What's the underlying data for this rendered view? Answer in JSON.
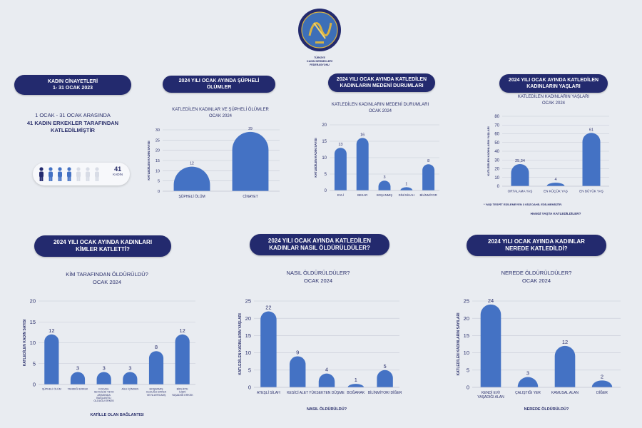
{
  "logo": {
    "caption_lines": [
      "TÜRKİYE",
      "KADIN DERNEKLERİ",
      "FEDERASYONU"
    ]
  },
  "summary": {
    "title_line1": "KADIN CİNAYETLERİ",
    "title_line2": "1- 31 OCAK 2023",
    "text_line1": "1 OCAK - 31 OCAK ARASINDA",
    "text_line2": "41 KADIN ERKEKLER TARAFINDAN",
    "text_line3": "KATLEDİLMİŞTİR",
    "count": "41",
    "count_label": "KADIN",
    "figures_dark": 1,
    "figures_mid": 3,
    "figures_light": 3
  },
  "colors": {
    "bar": "#4472c4",
    "pill": "#232a6e",
    "text": "#2a2f6b",
    "grid": "#c6cad6",
    "figure_dark": "#232a6e",
    "figure_mid": "#4472c4",
    "figure_light": "#d8dce6"
  },
  "headers": {
    "suspicious": "2024 YILI OCAK AYINDA ŞÜPHELİ ÖLÜMLER",
    "marital_l1": "2024 YILI OCAK AYINDA KATLEDİLEN",
    "marital_l2": "KADINLARIN MEDENİ DURUMLARI",
    "ages_l1": "2024 YILI OCAK AYINDA KATLEDİLEN",
    "ages_l2": "KADINLARIN YAŞLARI",
    "who_l1": "2024 YILI OCAK AYINDA KADINLARI",
    "who_l2": "KİMLER KATLETTİ?",
    "how_l1": "2024 YILI OCAK AYINDA KATLEDİLEN",
    "how_l2": "KADINLAR NASIL ÖLDÜRÜLDÜLER?",
    "where_l1": "2024 YILI OCAK AYINDA KADINLAR",
    "where_l2": "NEREDE KATLEDİLDİ?"
  },
  "ages_note": "* YAŞI TESPİT EDİLEMEYEN 3 KİŞİ DAHİL EDİLMEMİŞTİR.",
  "chart_data": [
    {
      "id": "suspicious",
      "type": "bar",
      "title_lines": [
        "KATLEDİLEN KADINLAR VE ŞÜPHELİ ÖLÜMLER",
        "OCAK 2024"
      ],
      "categories": [
        "ŞÜPHELİ ÖLÜM",
        "CİNAYET"
      ],
      "values": [
        12,
        29
      ],
      "value_labels": [
        "12",
        "29"
      ],
      "ylabel": "KATLEDİLEN KADIN SAYISI",
      "xlabel": "",
      "ylim": [
        0,
        30
      ],
      "yticks": [
        0,
        5,
        10,
        15,
        20,
        25,
        30
      ],
      "grid": true
    },
    {
      "id": "marital",
      "type": "bar",
      "title_lines": [
        "KATLEDİLEN KADINLARIN MEDENİ DURUMLARI",
        "OCAK 2024"
      ],
      "categories": [
        "EVLİ",
        "BEKAR",
        "BOŞANMIŞ",
        "DİNİ NİKAH",
        "BİLİNMİYOR"
      ],
      "values": [
        13,
        16,
        3,
        1,
        8
      ],
      "value_labels": [
        "13",
        "16",
        "3",
        "1",
        "8"
      ],
      "ylabel": "KATLEDİLEN KADIN SAYISI",
      "xlabel": "",
      "ylim": [
        0,
        20
      ],
      "yticks": [
        0,
        5,
        10,
        15,
        20
      ],
      "grid": true
    },
    {
      "id": "ages",
      "type": "bar",
      "title_lines": [
        "KATLEDİLEN KADINLARIN YAŞLARI",
        "OCAK 2024"
      ],
      "categories": [
        "ORTALAMA YAŞ",
        "EN KÜÇÜK YAŞ",
        "EN BÜYÜK YAŞ"
      ],
      "values": [
        25.34,
        4,
        61
      ],
      "value_labels": [
        "25,34",
        "4",
        "61"
      ],
      "ylabel": "KATLEDİLEN KADINLARIN YAŞLARI",
      "xlabel": "HANGİ YAŞTA KATLEDİLDİLER?",
      "ylim": [
        0,
        80
      ],
      "yticks": [
        0,
        10,
        20,
        30,
        40,
        50,
        60,
        70,
        80
      ],
      "grid": true
    },
    {
      "id": "who",
      "type": "bar",
      "title_lines": [
        "KİM TARAFINDAN ÖLDÜRÜLDÜ?",
        "OCAK 2024"
      ],
      "categories": [
        "ŞÜPHELİ ÖLÜM",
        "TANIDIĞI ERKEK",
        "KOCASI, SEVGİLİSİ VEYA ARASINDA BAĞLANTILI OLDUĞU ERKEK",
        "AİLE İÇİNDEN",
        "BOŞANMIŞ OLDUĞU ERKEK VEYA AYRILMIŞ",
        "BİRLİKTE İLİŞKİ YAŞADIĞI ERKEK"
      ],
      "values": [
        12,
        3,
        3,
        3,
        8,
        12
      ],
      "value_labels": [
        "12",
        "3",
        "3",
        "3",
        "8",
        "12"
      ],
      "ylabel": "KATLEDİLEN KADIN SAYISI",
      "xlabel": "KATİLLE OLAN BAĞLANTISI",
      "ylim": [
        0,
        20
      ],
      "yticks": [
        0,
        5,
        10,
        15,
        20
      ],
      "grid": true
    },
    {
      "id": "how",
      "type": "bar",
      "title_lines": [
        "NASIL ÖLDÜRÜLDÜLER?",
        "OCAK 2024"
      ],
      "categories": [
        "ATEŞLİ SİLAH",
        "KESİCİ ALET",
        "YÜKSEKTEN DÜŞME",
        "BOĞARAK",
        "BİLİNMİYOR/ DİĞER"
      ],
      "values": [
        22,
        9,
        4,
        1,
        5
      ],
      "value_labels": [
        "22",
        "9",
        "4",
        "1",
        "5"
      ],
      "ylabel": "KATLEDİLEN KADINLARIN YAŞLARI",
      "xlabel": "NASIL ÖLDÜRÜLDÜ?",
      "ylim": [
        0,
        25
      ],
      "yticks": [
        0,
        5,
        10,
        15,
        20,
        25
      ],
      "grid": true
    },
    {
      "id": "where",
      "type": "bar",
      "title_lines": [
        "NEREDE ÖLDÜRÜLDÜLER?",
        "OCAK 2024"
      ],
      "categories": [
        "KENDİ EVİ/ YAŞADIĞI ALAN",
        "ÇALIŞTIĞI YER",
        "KAMUSAL ALAN",
        "DİĞER"
      ],
      "values": [
        24,
        3,
        12,
        2
      ],
      "value_labels": [
        "24",
        "3",
        "12",
        "2"
      ],
      "ylabel": "KATLEDİLEN KADINLARIN SAYILARI",
      "xlabel": "NEREDE ÖLDÜRÜLDÜ?",
      "ylim": [
        0,
        25
      ],
      "yticks": [
        0,
        5,
        10,
        15,
        20,
        25
      ],
      "grid": true
    }
  ]
}
